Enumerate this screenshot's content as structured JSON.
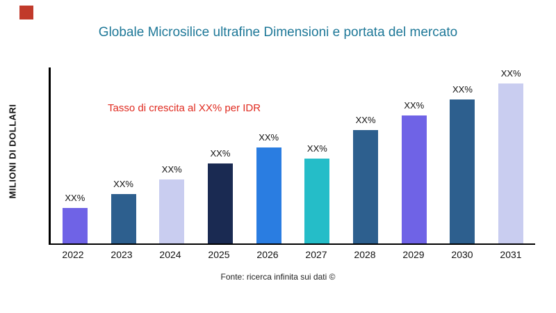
{
  "page": {
    "title": "Globale Microsilice ultrafine Dimensioni e portata del mercato",
    "y_axis_label": "MILIONI DI DOLLARI",
    "annotation": "Tasso di crescita al XX% per IDR",
    "source": "Fonte: ricerca infinita sui dati ©",
    "title_color": "#1e7898",
    "annotation_color": "#e02b20",
    "logo_color": "#c13a2b"
  },
  "chart_data": {
    "type": "bar",
    "title": "Globale Microsilice ultrafine Dimensioni e portata del mercato",
    "xlabel": "",
    "ylabel": "MILIONI DI DOLLARI",
    "categories": [
      "2022",
      "2023",
      "2024",
      "2025",
      "2026",
      "2027",
      "2028",
      "2029",
      "2030",
      "2031"
    ],
    "values": [
      22,
      31,
      40,
      50,
      60,
      53,
      71,
      80,
      90,
      100
    ],
    "value_labels": [
      "XX%",
      "XX%",
      "XX%",
      "XX%",
      "XX%",
      "XX%",
      "XX%",
      "XX%",
      "XX%",
      "XX%"
    ],
    "bar_colors": [
      "#6f63e6",
      "#2d5f8e",
      "#c9cdf0",
      "#1a2a52",
      "#2a7de1",
      "#25bdc8",
      "#2d5f8e",
      "#6f63e6",
      "#2d5f8e",
      "#c9cdf0"
    ],
    "ylim": [
      0,
      110
    ],
    "grid": false,
    "legend": false,
    "annotation": "Tasso di crescita al XX% per IDR"
  }
}
